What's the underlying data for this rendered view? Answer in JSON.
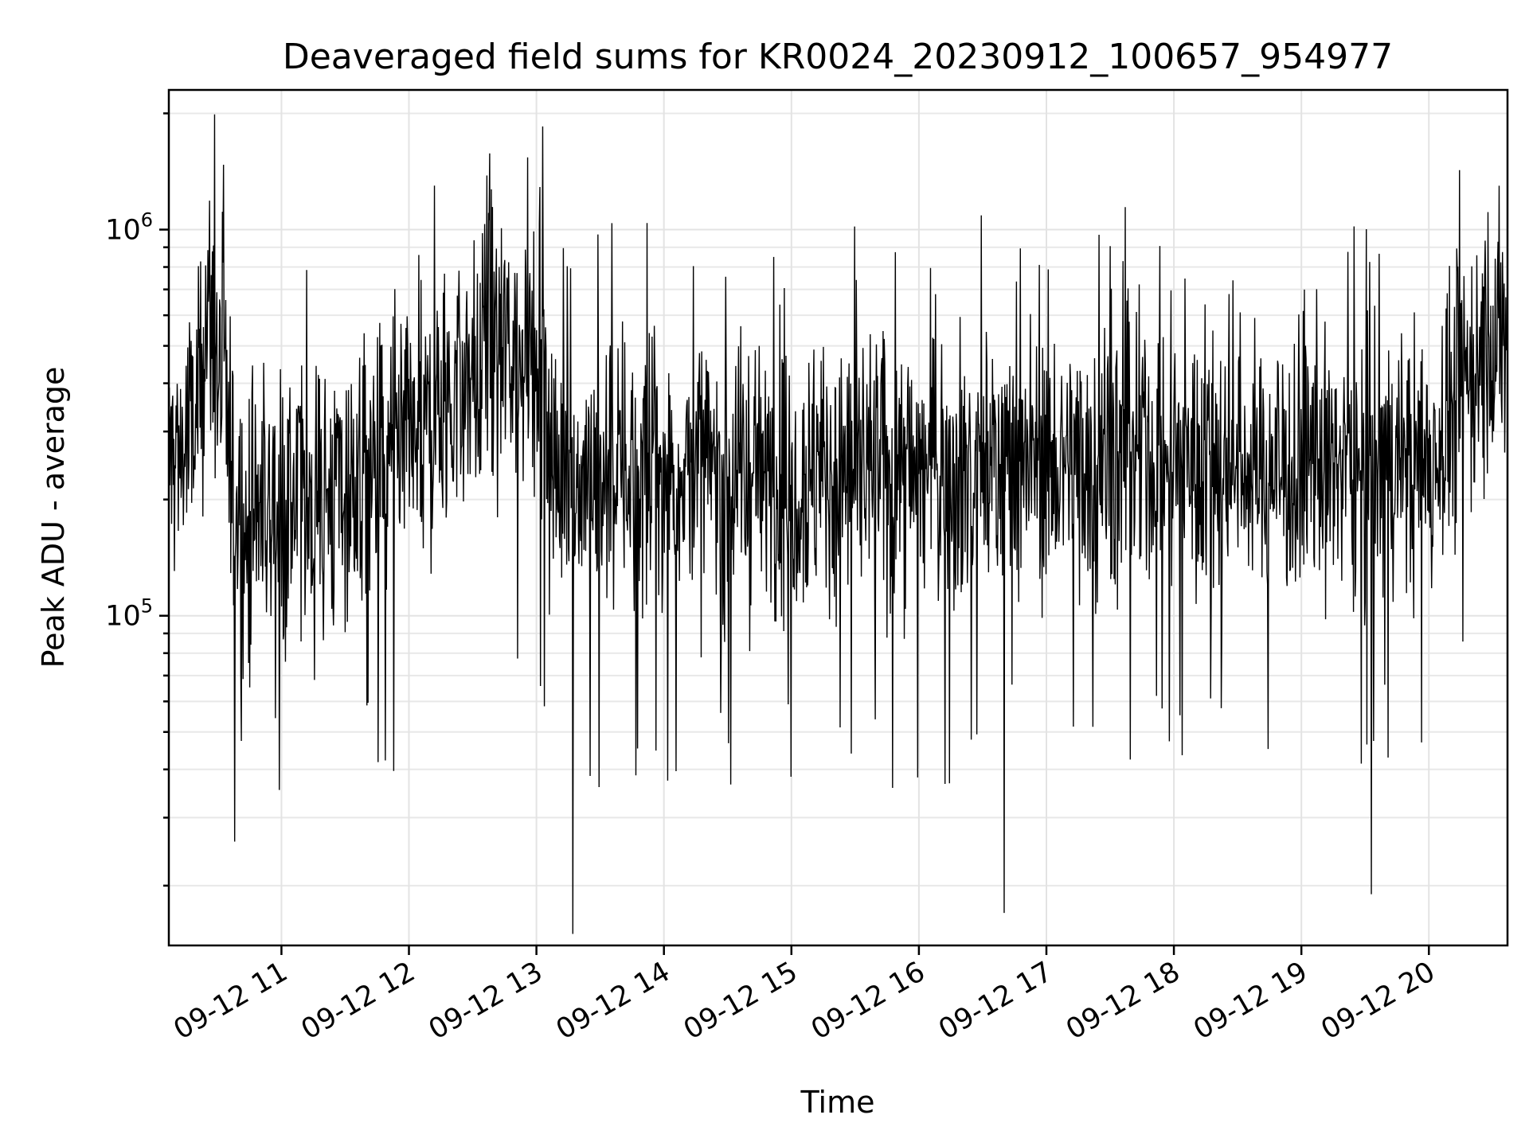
{
  "chart_data": {
    "type": "line",
    "title": "Deaveraged field sums for KR0024_20230912_100657_954977",
    "xlabel": "Time",
    "ylabel": "Peak ADU - average",
    "y_scale": "log",
    "ylim": [
      14000,
      2300000
    ],
    "xlim": [
      "2023-09-12 10:07",
      "2023-09-12 20:37"
    ],
    "grid": true,
    "x_ticks": [
      "09-12 11",
      "09-12 12",
      "09-12 13",
      "09-12 14",
      "09-12 15",
      "09-12 16",
      "09-12 17",
      "09-12 18",
      "09-12 19",
      "09-12 20"
    ],
    "y_ticks": [
      {
        "base": "10",
        "exp": "5"
      },
      {
        "base": "10",
        "exp": "6"
      }
    ],
    "series": [
      {
        "color": "#000000",
        "sampled_points": [
          {
            "x": "2023-09-12 10:07",
            "y": 250000
          },
          {
            "x": "2023-09-12 10:20",
            "y": 300000
          },
          {
            "x": "2023-09-12 10:25",
            "y": 650000
          },
          {
            "x": "2023-09-12 10:40",
            "y": 180000
          },
          {
            "x": "2023-09-12 11:00",
            "y": 190000
          },
          {
            "x": "2023-09-12 11:30",
            "y": 210000
          },
          {
            "x": "2023-09-12 12:00",
            "y": 260000
          },
          {
            "x": "2023-09-12 12:25",
            "y": 400000
          },
          {
            "x": "2023-09-12 12:55",
            "y": 520000
          },
          {
            "x": "2023-09-12 13:10",
            "y": 230000
          },
          {
            "x": "2023-09-12 14:00",
            "y": 240000
          },
          {
            "x": "2023-09-12 15:00",
            "y": 230000
          },
          {
            "x": "2023-09-12 16:00",
            "y": 240000
          },
          {
            "x": "2023-09-12 17:00",
            "y": 250000
          },
          {
            "x": "2023-09-12 18:00",
            "y": 260000
          },
          {
            "x": "2023-09-12 19:00",
            "y": 240000
          },
          {
            "x": "2023-09-12 20:00",
            "y": 250000
          },
          {
            "x": "2023-09-12 20:25",
            "y": 500000
          },
          {
            "x": "2023-09-12 20:37",
            "y": 500000
          }
        ],
        "extremes": [
          {
            "x": "2023-09-12 13:03",
            "y": 1850000
          },
          {
            "x": "2023-09-12 12:12",
            "y": 1300000
          },
          {
            "x": "2023-09-12 13:17",
            "y": 15000
          },
          {
            "x": "2023-09-12 16:40",
            "y": 17000
          },
          {
            "x": "2023-09-12 19:33",
            "y": 19000
          },
          {
            "x": "2023-09-12 10:38",
            "y": 26000
          }
        ]
      }
    ]
  }
}
